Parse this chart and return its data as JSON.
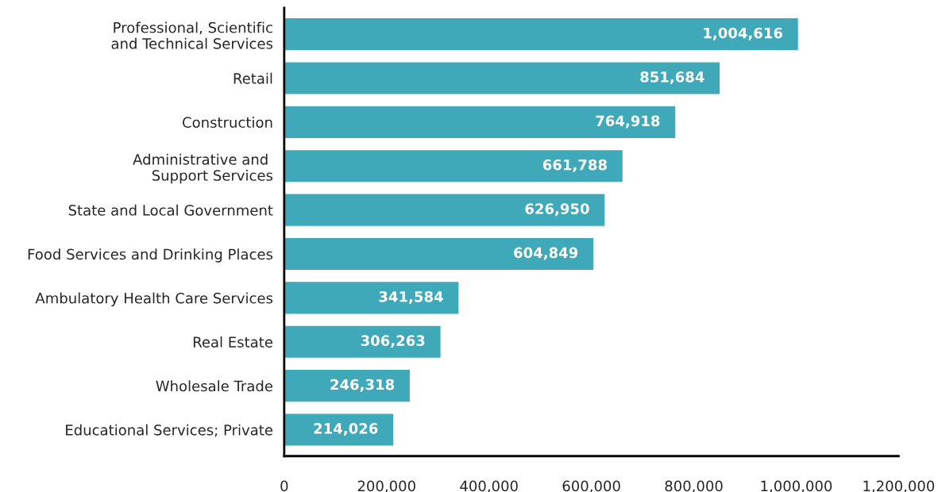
{
  "chart_data": {
    "type": "bar",
    "orientation": "horizontal",
    "categories": [
      "Professional, Scientific\nand Technical Services",
      "Retail",
      "Construction",
      "Administrative and \nSupport Services",
      "State and Local Government",
      "Food Services and Drinking Places",
      "Ambulatory Health Care Services",
      "Real Estate",
      "Wholesale Trade",
      "Educational Services; Private"
    ],
    "values": [
      1004616,
      851684,
      764918,
      661788,
      626950,
      604849,
      341584,
      306263,
      246318,
      214026
    ],
    "color": "#40a9b9",
    "xlim": [
      0,
      1200000
    ],
    "xticks": [
      {
        "value": 0,
        "label": "0"
      },
      {
        "value": 200000,
        "label": "200,000"
      },
      {
        "value": 400000,
        "label": "400,000"
      },
      {
        "value": 600000,
        "label": "600,000"
      },
      {
        "value": 800000,
        "label": "800,000"
      },
      {
        "value": 1000000,
        "label": "1,000,000"
      },
      {
        "value": 1200000,
        "label": "1,200,000"
      }
    ],
    "value_labels": [
      "1,004,616",
      "851,684",
      "764,918",
      "661,788",
      "626,950",
      "604,849",
      "341,584",
      "306,263",
      "246,318",
      "214,026"
    ],
    "grid": false,
    "legend": false
  }
}
